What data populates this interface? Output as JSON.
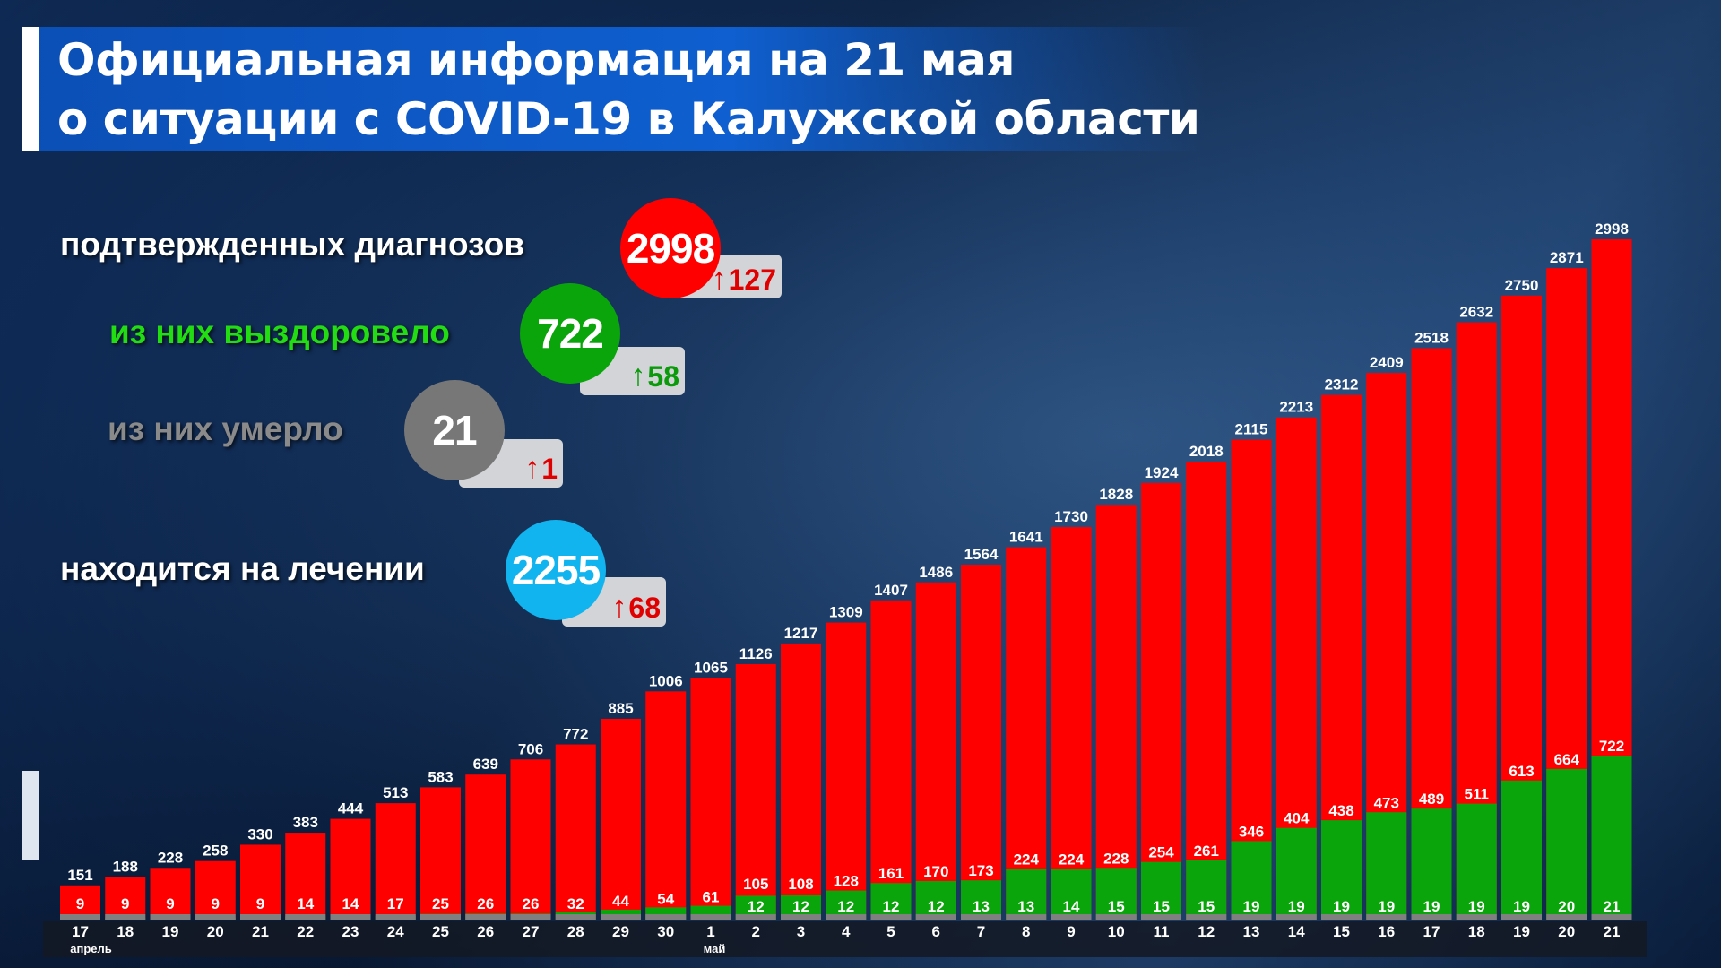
{
  "title": {
    "line1": "Официальная информация на 21 мая",
    "line2": "о ситуации с COVID-19 в Калужской области"
  },
  "stats": [
    {
      "label": "подтвержденных диагнозов",
      "value": "2998",
      "delta": "127",
      "color": "#ff0000",
      "label_color": "#ffffff",
      "delta_color": "#e00000"
    },
    {
      "label": "из них выздоровело",
      "value": "722",
      "delta": "58",
      "color": "#0aa50a",
      "label_color": "#22dd11",
      "delta_color": "#0a9a0a"
    },
    {
      "label": "из них умерло",
      "value": "21",
      "delta": "1",
      "color": "#777777",
      "label_color": "#8a8a8a",
      "delta_color": "#e00000"
    },
    {
      "label": "находится на лечении",
      "value": "2255",
      "delta": "68",
      "color": "#12b4ef",
      "label_color": "#ffffff",
      "delta_color": "#e00000"
    }
  ],
  "chart_data": {
    "type": "bar",
    "title": "Официальная информация на 21 мая о ситуации с COVID-19 в Калужской области",
    "categories": [
      "17",
      "18",
      "19",
      "20",
      "21",
      "22",
      "23",
      "24",
      "25",
      "26",
      "27",
      "28",
      "29",
      "30",
      "1",
      "2",
      "3",
      "4",
      "5",
      "6",
      "7",
      "8",
      "9",
      "10",
      "11",
      "12",
      "13",
      "14",
      "15",
      "16",
      "17",
      "18",
      "19",
      "20",
      "21"
    ],
    "month_labels": [
      {
        "index": 0,
        "label": "апрель"
      },
      {
        "index": 14,
        "label": "май"
      }
    ],
    "series": [
      {
        "name": "confirmed",
        "color": "#ff0000",
        "values": [
          151,
          188,
          228,
          258,
          330,
          383,
          444,
          513,
          583,
          639,
          706,
          772,
          885,
          1006,
          1065,
          1126,
          1217,
          1309,
          1407,
          1486,
          1564,
          1641,
          1730,
          1828,
          1924,
          2018,
          2115,
          2213,
          2312,
          2409,
          2518,
          2632,
          2750,
          2871,
          2998
        ]
      },
      {
        "name": "recovered",
        "color": "#0aa50a",
        "values": [
          9,
          9,
          9,
          9,
          9,
          14,
          14,
          17,
          25,
          26,
          26,
          32,
          44,
          54,
          61,
          105,
          108,
          128,
          161,
          170,
          173,
          224,
          224,
          228,
          254,
          261,
          346,
          404,
          438,
          473,
          489,
          511,
          613,
          664,
          722
        ]
      },
      {
        "name": "deaths",
        "color": "#808080",
        "values": [
          null,
          null,
          null,
          null,
          null,
          null,
          null,
          null,
          null,
          null,
          null,
          null,
          null,
          null,
          null,
          12,
          12,
          12,
          12,
          12,
          13,
          13,
          14,
          15,
          15,
          15,
          19,
          19,
          19,
          19,
          19,
          19,
          19,
          20,
          21
        ]
      }
    ],
    "ylim": [
      0,
      3000
    ],
    "grid": false,
    "legend": "none"
  }
}
